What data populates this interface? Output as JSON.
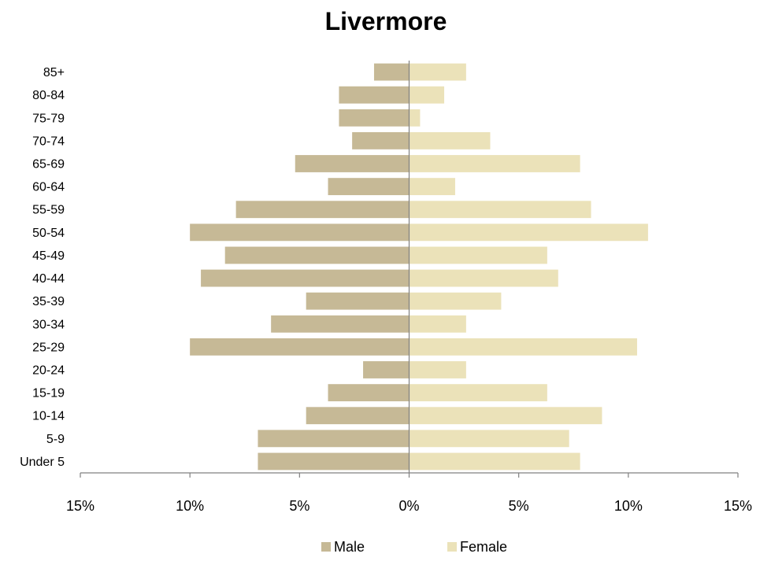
{
  "chart_data": {
    "type": "bar",
    "orientation": "horizontal",
    "title": "Livermore",
    "categories": [
      "85+",
      "80-84",
      "75-79",
      "70-74",
      "65-69",
      "60-64",
      "55-59",
      "50-54",
      "45-49",
      "40-44",
      "35-39",
      "30-34",
      "25-29",
      "20-24",
      "15-19",
      "10-14",
      "5-9",
      "Under 5"
    ],
    "series": [
      {
        "name": "Male",
        "color": "#c6b996",
        "values": [
          -1.6,
          -3.2,
          -3.2,
          -2.6,
          -5.2,
          -3.7,
          -7.9,
          -10.0,
          -8.4,
          -9.5,
          -4.7,
          -6.3,
          -10.0,
          -2.1,
          -3.7,
          -4.7,
          -6.9,
          -6.9
        ]
      },
      {
        "name": "Female",
        "color": "#ebe2b9",
        "values": [
          2.6,
          1.6,
          0.5,
          3.7,
          7.8,
          2.1,
          8.3,
          10.9,
          6.3,
          6.8,
          4.2,
          2.6,
          10.4,
          2.6,
          6.3,
          8.8,
          7.3,
          7.8
        ]
      }
    ],
    "xlim": [
      -15,
      15
    ],
    "xticks": [
      -15,
      -10,
      -5,
      0,
      5,
      10,
      15
    ],
    "xtick_labels": [
      "15%",
      "10%",
      "5%",
      "0%",
      "5%",
      "10%",
      "15%"
    ],
    "legend_position": "bottom",
    "grid": false
  }
}
